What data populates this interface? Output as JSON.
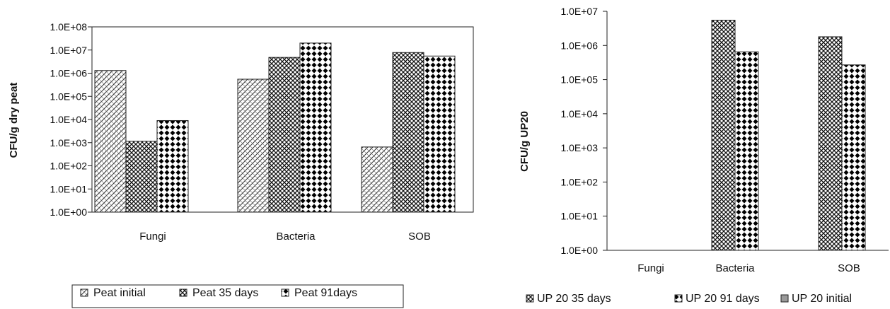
{
  "chart_data": [
    {
      "type": "bar",
      "title": "",
      "xlabel": "",
      "ylabel": "CFU/g dry peat",
      "yscale": "log",
      "ylim": [
        1,
        100000000
      ],
      "yticks": [
        "1.0E+00",
        "1.0E+01",
        "1.0E+02",
        "1.0E+03",
        "1.0E+04",
        "1.0E+05",
        "1.0E+06",
        "1.0E+07",
        "1.0E+08"
      ],
      "categories": [
        "Fungi",
        "Bacteria",
        "SOB"
      ],
      "grid": false,
      "legend": "bottom",
      "series": [
        {
          "name": "Peat initial",
          "pattern": "diag",
          "values": [
            1300000,
            550000,
            650
          ]
        },
        {
          "name": "Peat 35 days",
          "pattern": "checker",
          "values": [
            1150,
            4800000,
            7800000
          ]
        },
        {
          "name": "Peat 91days",
          "pattern": "diamond",
          "values": [
            9000,
            20000000,
            5500000
          ]
        }
      ]
    },
    {
      "type": "bar",
      "title": "",
      "xlabel": "",
      "ylabel": "CFU/g UP20",
      "yscale": "log",
      "ylim": [
        1,
        10000000
      ],
      "yticks": [
        "1.0E+00",
        "1.0E+01",
        "1.0E+02",
        "1.0E+03",
        "1.0E+04",
        "1.0E+05",
        "1.0E+06",
        "1.0E+07"
      ],
      "categories": [
        "Fungi",
        "Bacteria",
        "SOB"
      ],
      "grid": false,
      "legend": "bottom",
      "series": [
        {
          "name": "UP 20 35 days",
          "pattern": "checker",
          "values": [
            null,
            5500000,
            1800000
          ]
        },
        {
          "name": "UP 20 91 days",
          "pattern": "diamond",
          "values": [
            null,
            650000,
            270000
          ]
        },
        {
          "name": "UP 20 initial",
          "pattern": "solid",
          "values": [
            null,
            null,
            null
          ]
        }
      ]
    }
  ]
}
